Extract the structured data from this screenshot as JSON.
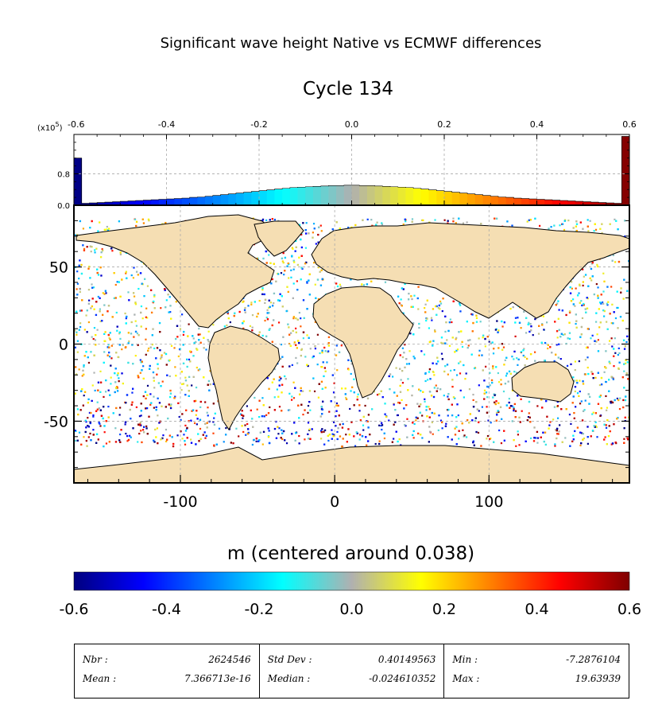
{
  "title": "Significant wave height Native vs ECMWF differences",
  "subtitle": "Cycle 134",
  "colorbar": {
    "label": "m (centered around 0.038)",
    "ticks": [
      "-0.6",
      "-0.4",
      "-0.2",
      "0.0",
      "0.2",
      "0.4",
      "0.6"
    ],
    "range": [
      -0.6,
      0.6
    ],
    "stops": [
      "#00007f",
      "#0000ff",
      "#0080ff",
      "#00ffff",
      "#b0b0b0",
      "#ffff00",
      "#ff8000",
      "#ff0000",
      "#7f0000"
    ]
  },
  "chart_data": [
    {
      "type": "histogram",
      "x_ticks": [
        "-0.6",
        "-0.4",
        "-0.2",
        "0.0",
        "0.2",
        "0.4",
        "0.6"
      ],
      "y_ticks": [
        "0.0",
        "0.8"
      ],
      "y_multiplier": "(x10",
      "y_exponent": "5",
      "y_multiplier_close": ")",
      "xlim": [
        -0.6,
        0.6
      ],
      "ylim": [
        0,
        1.8
      ],
      "values": [
        1.2,
        0.05,
        0.06,
        0.07,
        0.08,
        0.09,
        0.1,
        0.11,
        0.12,
        0.13,
        0.14,
        0.15,
        0.16,
        0.17,
        0.18,
        0.2,
        0.21,
        0.23,
        0.25,
        0.27,
        0.29,
        0.31,
        0.33,
        0.35,
        0.37,
        0.39,
        0.41,
        0.43,
        0.45,
        0.46,
        0.47,
        0.48,
        0.49,
        0.5,
        0.5,
        0.51,
        0.51,
        0.5,
        0.5,
        0.49,
        0.48,
        0.47,
        0.46,
        0.45,
        0.43,
        0.41,
        0.39,
        0.37,
        0.35,
        0.33,
        0.31,
        0.29,
        0.27,
        0.25,
        0.23,
        0.21,
        0.2,
        0.18,
        0.17,
        0.16,
        0.15,
        0.14,
        0.13,
        0.12,
        0.11,
        0.1,
        0.09,
        0.08,
        0.07,
        0.06,
        0.05,
        1.75
      ]
    },
    {
      "type": "map",
      "x_ticks": [
        {
          "value": -100,
          "label": "-100"
        },
        {
          "value": 0,
          "label": "0"
        },
        {
          "value": 100,
          "label": "100"
        }
      ],
      "y_ticks": [
        {
          "value": 50,
          "label": "50"
        },
        {
          "value": 0,
          "label": "0"
        },
        {
          "value": -50,
          "label": "-50"
        }
      ],
      "xlim": [
        -169,
        191
      ],
      "ylim": [
        -90,
        90
      ],
      "grid": true
    }
  ],
  "stats": [
    {
      "label1": "Nbr :",
      "value1": "2624546",
      "label2": "Mean :",
      "value2": "7.366713e-16"
    },
    {
      "label1": "Std Dev :",
      "value1": "0.40149563",
      "label2": "Median :",
      "value2": "-0.024610352"
    },
    {
      "label1": "Min :",
      "value1": "-7.2876104",
      "label2": "Max :",
      "value2": "19.63939"
    }
  ]
}
